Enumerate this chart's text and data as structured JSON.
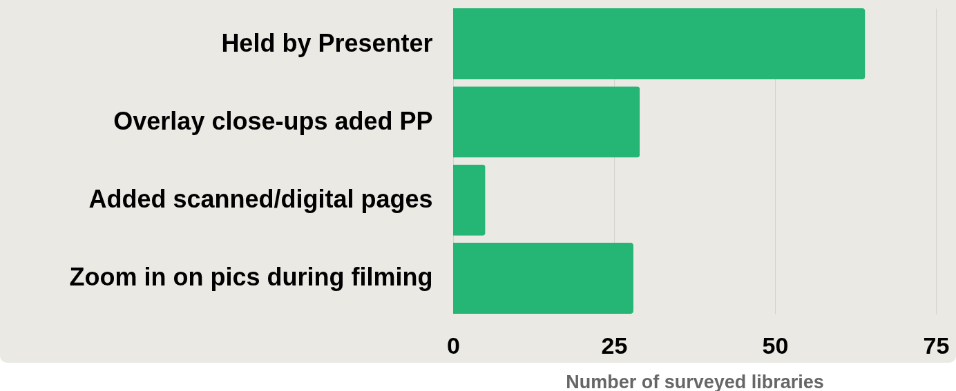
{
  "chart_data": {
    "type": "bar",
    "orientation": "horizontal",
    "xlabel": "Number of surveyed libraries",
    "categories": [
      "Held by Presenter",
      "Overlay close-ups aded PP",
      "Added scanned/digital pages",
      "Zoom in on pics during filming"
    ],
    "values": [
      64,
      29,
      5,
      28
    ],
    "color": "#25b574",
    "xlim": [
      0,
      75
    ],
    "xticks": [
      0,
      25,
      50,
      75
    ],
    "grid": "x"
  }
}
